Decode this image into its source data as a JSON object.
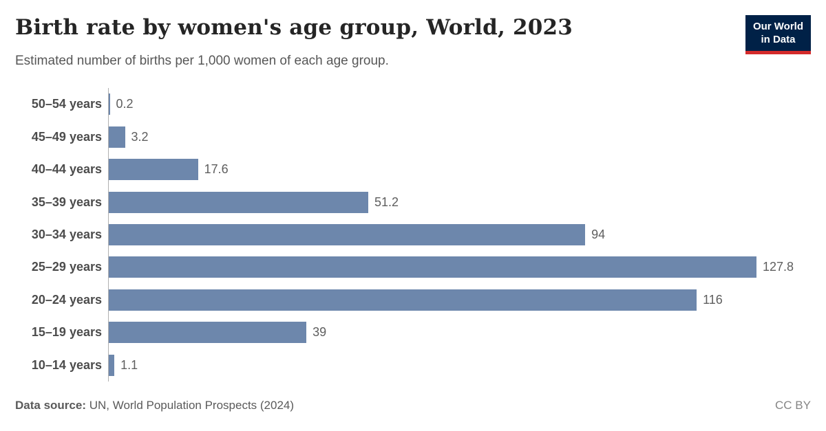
{
  "header": {
    "title": "Birth rate by women's age group, World, 2023",
    "subtitle": "Estimated number of births per 1,000 women of each age group.",
    "logo": {
      "line1": "Our World",
      "line2": "in Data"
    }
  },
  "chart_data": {
    "type": "bar",
    "orientation": "horizontal",
    "title": "Birth rate by women's age group, World, 2023",
    "subtitle": "Estimated number of births per 1,000 women of each age group.",
    "xlabel": "",
    "ylabel": "",
    "categories": [
      "50–54 years",
      "45–49 years",
      "40–44 years",
      "35–39 years",
      "30–34 years",
      "25–29 years",
      "20–24 years",
      "15–19 years",
      "10–14 years"
    ],
    "values": [
      0.2,
      3.2,
      17.6,
      51.2,
      94,
      127.8,
      116,
      39,
      1.1
    ],
    "value_labels": [
      "0.2",
      "3.2",
      "17.6",
      "51.2",
      "94",
      "127.8",
      "116",
      "39",
      "1.1"
    ],
    "xlim": [
      0,
      127.8
    ],
    "grid": false,
    "legend": false,
    "value_label_position": "end-of-bar",
    "bar_color": "#6d87ac",
    "axis_line_color": "#b0b0b0"
  },
  "colors": {
    "bar": "#6d87ac",
    "logo_background": "#002147",
    "logo_accent": "#d42b2b",
    "title_text": "#252525",
    "subtitle_text": "#575757"
  },
  "footer": {
    "source_label": "Data source:",
    "source_text": " UN, World Population Prospects (2024)",
    "license": "CC BY"
  }
}
